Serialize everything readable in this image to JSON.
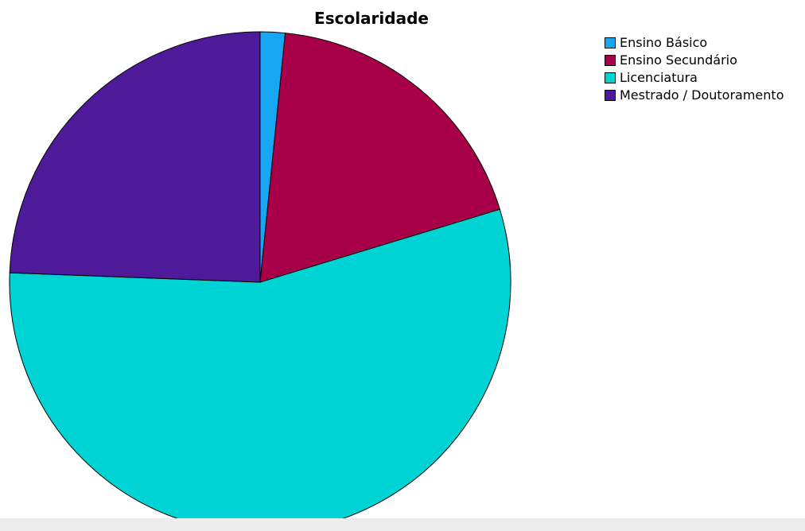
{
  "chart_data": {
    "type": "pie",
    "title": "Escolaridade",
    "slices": [
      {
        "label": "Ensino Básico",
        "value": 1.6,
        "color": "#17a6f2"
      },
      {
        "label": "Ensino Secundário",
        "value": 18.7,
        "color": "#a80048"
      },
      {
        "label": "Licenciatura",
        "value": 55.3,
        "color": "#00d3d3"
      },
      {
        "label": "Mestrado / Doutoramento",
        "value": 24.4,
        "color": "#4f1a9a"
      }
    ],
    "start_angle_deg": 0,
    "direction": "clockwise",
    "legend_position": "top-right"
  }
}
